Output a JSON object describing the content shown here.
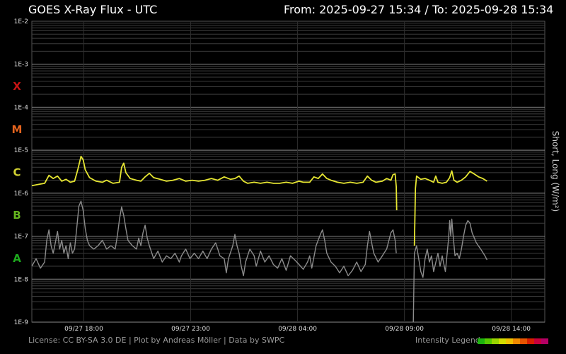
{
  "header": {
    "title": "GOES X-Ray Flux - UTC",
    "range": "From: 2025-09-27 15:34  /  To: 2025-09-28 15:34"
  },
  "footer": {
    "credits": "License: CC BY-SA 3.0 DE | Plot by Andreas Möller | Data by SWPC",
    "legend_label": "Intensity Legend",
    "legend_colors": [
      "#1db30e",
      "#57c800",
      "#9ad400",
      "#d4dc00",
      "#f0c000",
      "#f08a00",
      "#e85400",
      "#d81e00",
      "#c8003c",
      "#b40064"
    ]
  },
  "chart_data": {
    "type": "line",
    "ylabel": "Short, Long (W/m²)",
    "yscale": "log",
    "ylim": [
      1e-09,
      0.01
    ],
    "y_ticks": [
      {
        "label": "1E-2",
        "value": 0.01
      },
      {
        "label": "1E-3",
        "value": 0.001
      },
      {
        "label": "1E-4",
        "value": 0.0001
      },
      {
        "label": "1E-5",
        "value": 1e-05
      },
      {
        "label": "1E-6",
        "value": 1e-06
      },
      {
        "label": "1E-7",
        "value": 1e-07
      },
      {
        "label": "1E-8",
        "value": 1e-08
      },
      {
        "label": "1E-9",
        "value": 1e-09
      }
    ],
    "flare_classes": [
      {
        "label": "X",
        "value": 0.000316,
        "color": "#c81414"
      },
      {
        "label": "M",
        "value": 3.16e-05,
        "color": "#e6641e"
      },
      {
        "label": "C",
        "value": 3.16e-06,
        "color": "#d2d232"
      },
      {
        "label": "B",
        "value": 3.16e-07,
        "color": "#64b41e"
      },
      {
        "label": "A",
        "value": 3.16e-08,
        "color": "#1eaa1e"
      }
    ],
    "x_unit": "hours since start (2025-09-27 15:34 UTC)",
    "xlim": [
      0,
      24
    ],
    "x_ticks": [
      {
        "label": "09/27 18:00",
        "value": 2.433
      },
      {
        "label": "09/27 23:00",
        "value": 7.433
      },
      {
        "label": "09/28 04:00",
        "value": 12.433
      },
      {
        "label": "09/28 09:00",
        "value": 17.433
      },
      {
        "label": "09/28 14:00",
        "value": 22.433
      }
    ],
    "series": [
      {
        "name": "Long",
        "color": "#e6e632",
        "segments": [
          [
            [
              0,
              1.5e-06
            ],
            [
              0.3,
              1.6e-06
            ],
            [
              0.6,
              1.7e-06
            ],
            [
              0.8,
              2.6e-06
            ],
            [
              1.0,
              2.2e-06
            ],
            [
              1.2,
              2.5e-06
            ],
            [
              1.4,
              1.9e-06
            ],
            [
              1.6,
              2.1e-06
            ],
            [
              1.8,
              1.8e-06
            ],
            [
              2.0,
              1.9e-06
            ],
            [
              2.15,
              3.5e-06
            ],
            [
              2.3,
              7.2e-06
            ],
            [
              2.4,
              6e-06
            ],
            [
              2.5,
              3.5e-06
            ],
            [
              2.7,
              2.3e-06
            ],
            [
              3.0,
              1.9e-06
            ],
            [
              3.3,
              1.8e-06
            ],
            [
              3.5,
              2e-06
            ],
            [
              3.8,
              1.7e-06
            ],
            [
              4.1,
              1.8e-06
            ],
            [
              4.2,
              4e-06
            ],
            [
              4.3,
              5e-06
            ],
            [
              4.4,
              3e-06
            ],
            [
              4.6,
              2.2e-06
            ],
            [
              4.9,
              2e-06
            ],
            [
              5.1,
              1.9e-06
            ],
            [
              5.3,
              2.4e-06
            ],
            [
              5.5,
              2.9e-06
            ],
            [
              5.7,
              2.3e-06
            ],
            [
              6.0,
              2.1e-06
            ],
            [
              6.3,
              1.9e-06
            ],
            [
              6.6,
              2e-06
            ],
            [
              6.9,
              2.2e-06
            ],
            [
              7.2,
              1.9e-06
            ],
            [
              7.5,
              2e-06
            ],
            [
              7.8,
              1.9e-06
            ],
            [
              8.1,
              2e-06
            ],
            [
              8.4,
              2.2e-06
            ],
            [
              8.7,
              2e-06
            ],
            [
              9.0,
              2.4e-06
            ],
            [
              9.3,
              2.1e-06
            ],
            [
              9.5,
              2.2e-06
            ],
            [
              9.7,
              2.5e-06
            ],
            [
              9.9,
              1.9e-06
            ],
            [
              10.1,
              1.7e-06
            ],
            [
              10.4,
              1.8e-06
            ],
            [
              10.7,
              1.7e-06
            ],
            [
              11.0,
              1.8e-06
            ],
            [
              11.3,
              1.7e-06
            ],
            [
              11.6,
              1.7e-06
            ],
            [
              11.9,
              1.8e-06
            ],
            [
              12.2,
              1.7e-06
            ],
            [
              12.5,
              1.9e-06
            ],
            [
              12.7,
              1.8e-06
            ],
            [
              13.0,
              1.8e-06
            ],
            [
              13.2,
              2.4e-06
            ],
            [
              13.4,
              2.2e-06
            ],
            [
              13.6,
              2.8e-06
            ],
            [
              13.8,
              2.2e-06
            ],
            [
              14.0,
              2e-06
            ],
            [
              14.3,
              1.8e-06
            ],
            [
              14.6,
              1.7e-06
            ],
            [
              14.9,
              1.8e-06
            ],
            [
              15.2,
              1.7e-06
            ],
            [
              15.5,
              1.8e-06
            ],
            [
              15.7,
              2.5e-06
            ],
            [
              15.9,
              2e-06
            ],
            [
              16.1,
              1.8e-06
            ],
            [
              16.4,
              1.9e-06
            ],
            [
              16.6,
              2.2e-06
            ],
            [
              16.8,
              2e-06
            ],
            [
              16.9,
              2.7e-06
            ],
            [
              17.0,
              2.8e-06
            ],
            [
              17.05,
              1.4e-06
            ],
            [
              17.07,
              4e-07
            ]
          ],
          [
            [
              17.9,
              6e-08
            ],
            [
              17.95,
              1.3e-06
            ],
            [
              18.0,
              2.5e-06
            ],
            [
              18.2,
              2.1e-06
            ],
            [
              18.4,
              2.2e-06
            ],
            [
              18.6,
              2e-06
            ],
            [
              18.8,
              1.8e-06
            ],
            [
              18.9,
              2.5e-06
            ],
            [
              19.0,
              1.8e-06
            ],
            [
              19.2,
              1.7e-06
            ],
            [
              19.4,
              1.8e-06
            ],
            [
              19.55,
              2.3e-06
            ],
            [
              19.65,
              3.3e-06
            ],
            [
              19.75,
              2e-06
            ],
            [
              19.9,
              1.8e-06
            ],
            [
              20.1,
              2e-06
            ],
            [
              20.3,
              2.4e-06
            ],
            [
              20.5,
              3.2e-06
            ],
            [
              20.7,
              2.8e-06
            ],
            [
              20.9,
              2.4e-06
            ],
            [
              21.1,
              2.2e-06
            ],
            [
              21.3,
              1.9e-06
            ]
          ]
        ]
      },
      {
        "name": "Short",
        "color": "#8c8c8c",
        "segments": [
          [
            [
              0,
              2e-08
            ],
            [
              0.2,
              3e-08
            ],
            [
              0.4,
              1.8e-08
            ],
            [
              0.6,
              2.5e-08
            ],
            [
              0.7,
              8e-08
            ],
            [
              0.8,
              1.4e-07
            ],
            [
              0.9,
              6e-08
            ],
            [
              1.0,
              4e-08
            ],
            [
              1.1,
              7e-08
            ],
            [
              1.2,
              1.3e-07
            ],
            [
              1.3,
              5e-08
            ],
            [
              1.4,
              8e-08
            ],
            [
              1.5,
              4e-08
            ],
            [
              1.6,
              6e-08
            ],
            [
              1.7,
              3e-08
            ],
            [
              1.8,
              7e-08
            ],
            [
              1.9,
              4e-08
            ],
            [
              2.0,
              5e-08
            ],
            [
              2.1,
              1.5e-07
            ],
            [
              2.2,
              5e-07
            ],
            [
              2.3,
              6.5e-07
            ],
            [
              2.4,
              4e-07
            ],
            [
              2.5,
              1.5e-07
            ],
            [
              2.6,
              8e-08
            ],
            [
              2.7,
              6e-08
            ],
            [
              2.9,
              5e-08
            ],
            [
              3.1,
              6e-08
            ],
            [
              3.3,
              8e-08
            ],
            [
              3.5,
              5e-08
            ],
            [
              3.7,
              6e-08
            ],
            [
              3.9,
              5e-08
            ],
            [
              4.0,
              1e-07
            ],
            [
              4.1,
              2.5e-07
            ],
            [
              4.2,
              4.8e-07
            ],
            [
              4.3,
              3e-07
            ],
            [
              4.4,
              1.5e-07
            ],
            [
              4.5,
              8e-08
            ],
            [
              4.7,
              6e-08
            ],
            [
              4.9,
              5e-08
            ],
            [
              5.0,
              9e-08
            ],
            [
              5.1,
              6e-08
            ],
            [
              5.2,
              1.2e-07
            ],
            [
              5.3,
              1.8e-07
            ],
            [
              5.4,
              9e-08
            ],
            [
              5.5,
              6e-08
            ],
            [
              5.7,
              3e-08
            ],
            [
              5.9,
              4.5e-08
            ],
            [
              6.1,
              2.5e-08
            ],
            [
              6.3,
              3.5e-08
            ],
            [
              6.5,
              3e-08
            ],
            [
              6.7,
              4e-08
            ],
            [
              6.9,
              2.5e-08
            ],
            [
              7.0,
              3.5e-08
            ],
            [
              7.2,
              5e-08
            ],
            [
              7.4,
              3e-08
            ],
            [
              7.6,
              4e-08
            ],
            [
              7.8,
              3e-08
            ],
            [
              8.0,
              4.5e-08
            ],
            [
              8.2,
              3e-08
            ],
            [
              8.4,
              5e-08
            ],
            [
              8.6,
              7e-08
            ],
            [
              8.7,
              5e-08
            ],
            [
              8.8,
              3.5e-08
            ],
            [
              9.0,
              3e-08
            ],
            [
              9.1,
              1.4e-08
            ],
            [
              9.2,
              3e-08
            ],
            [
              9.4,
              6e-08
            ],
            [
              9.5,
              1.1e-07
            ],
            [
              9.6,
              6e-08
            ],
            [
              9.7,
              4e-08
            ],
            [
              9.8,
              2e-08
            ],
            [
              9.9,
              1.2e-08
            ],
            [
              10.0,
              2.5e-08
            ],
            [
              10.2,
              5e-08
            ],
            [
              10.4,
              3.5e-08
            ],
            [
              10.5,
              2e-08
            ],
            [
              10.7,
              4.5e-08
            ],
            [
              10.9,
              2.5e-08
            ],
            [
              11.1,
              3.5e-08
            ],
            [
              11.3,
              2.2e-08
            ],
            [
              11.5,
              1.8e-08
            ],
            [
              11.7,
              3e-08
            ],
            [
              11.9,
              1.6e-08
            ],
            [
              12.1,
              3.5e-08
            ],
            [
              12.3,
              2.8e-08
            ],
            [
              12.5,
              2.2e-08
            ],
            [
              12.7,
              1.7e-08
            ],
            [
              12.9,
              2.5e-08
            ],
            [
              13.0,
              3.5e-08
            ],
            [
              13.1,
              1.8e-08
            ],
            [
              13.3,
              6e-08
            ],
            [
              13.5,
              1.1e-07
            ],
            [
              13.6,
              1.4e-07
            ],
            [
              13.7,
              8e-08
            ],
            [
              13.8,
              4e-08
            ],
            [
              14.0,
              2.5e-08
            ],
            [
              14.2,
              2e-08
            ],
            [
              14.4,
              1.4e-08
            ],
            [
              14.6,
              2e-08
            ],
            [
              14.8,
              1.2e-08
            ],
            [
              15.0,
              1.6e-08
            ],
            [
              15.2,
              2.5e-08
            ],
            [
              15.4,
              1.5e-08
            ],
            [
              15.6,
              2.2e-08
            ],
            [
              15.7,
              6e-08
            ],
            [
              15.8,
              1.3e-07
            ],
            [
              15.9,
              7e-08
            ],
            [
              16.0,
              4e-08
            ],
            [
              16.2,
              2.5e-08
            ],
            [
              16.4,
              3.5e-08
            ],
            [
              16.6,
              5e-08
            ],
            [
              16.8,
              1.2e-07
            ],
            [
              16.9,
              1.4e-07
            ],
            [
              17.0,
              8e-08
            ],
            [
              17.05,
              4e-08
            ]
          ],
          [
            [
              17.85,
              1e-09
            ],
            [
              17.9,
              4e-08
            ],
            [
              18.0,
              6e-08
            ],
            [
              18.1,
              3e-08
            ],
            [
              18.2,
              1.5e-08
            ],
            [
              18.3,
              1.1e-08
            ],
            [
              18.4,
              3e-08
            ],
            [
              18.5,
              5e-08
            ],
            [
              18.6,
              2.5e-08
            ],
            [
              18.7,
              3.5e-08
            ],
            [
              18.8,
              1.5e-08
            ],
            [
              19.0,
              4e-08
            ],
            [
              19.1,
              2e-08
            ],
            [
              19.2,
              3.5e-08
            ],
            [
              19.35,
              1.5e-08
            ],
            [
              19.5,
              9e-08
            ],
            [
              19.55,
              2.3e-07
            ],
            [
              19.6,
              1e-07
            ],
            [
              19.65,
              2.5e-07
            ],
            [
              19.7,
              1.2e-07
            ],
            [
              19.8,
              3.5e-08
            ],
            [
              19.9,
              4e-08
            ],
            [
              20.0,
              3e-08
            ],
            [
              20.1,
              5e-08
            ],
            [
              20.2,
              1e-07
            ],
            [
              20.3,
              1.8e-07
            ],
            [
              20.4,
              2.3e-07
            ],
            [
              20.5,
              2e-07
            ],
            [
              20.6,
              1.2e-07
            ],
            [
              20.8,
              7e-08
            ],
            [
              21.0,
              5e-08
            ],
            [
              21.2,
              3.5e-08
            ],
            [
              21.3,
              2.8e-08
            ]
          ]
        ]
      }
    ]
  }
}
